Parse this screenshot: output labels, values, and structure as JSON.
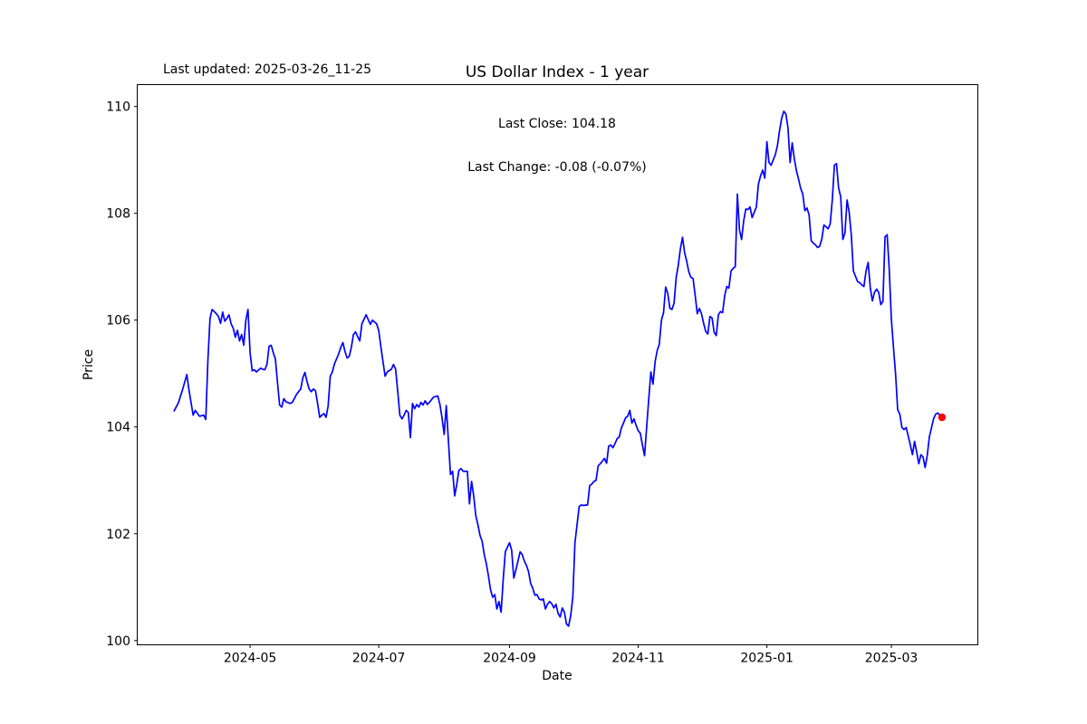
{
  "figure": {
    "last_updated": "Last updated: 2025-03-26_11-25",
    "background": "#ffffff"
  },
  "chart_data": {
    "type": "line",
    "title": "US Dollar Index - 1 year",
    "subtitle_lines": [
      "Last Close: 104.18",
      "Last Change: -0.08 (-0.07%)"
    ],
    "xlabel": "Date",
    "ylabel": "Price",
    "last_close": 104.18,
    "last_change_abs": -0.08,
    "last_change_pct": "-0.07%",
    "line_color": "#0000ff",
    "marker_color": "#ff0000",
    "axis_color": "#000000",
    "grid": false,
    "legend": "none",
    "ylim": [
      99.92,
      110.41
    ],
    "y_ticks": [
      100,
      102,
      104,
      106,
      108,
      110
    ],
    "xlim": [
      "2024-03-08T12:00:00Z",
      "2025-04-11T00:00:00Z"
    ],
    "x_ticks": [
      {
        "date": "2024-05-01",
        "label": "2024-05"
      },
      {
        "date": "2024-07-01",
        "label": "2024-07"
      },
      {
        "date": "2024-09-01",
        "label": "2024-09"
      },
      {
        "date": "2024-11-01",
        "label": "2024-11"
      },
      {
        "date": "2025-01-01",
        "label": "2025-01"
      },
      {
        "date": "2025-03-01",
        "label": "2025-03"
      }
    ],
    "series": [
      {
        "name": "US Dollar Index",
        "dates": [
          "2024-03-26",
          "2024-03-28",
          "2024-03-30",
          "2024-04-01",
          "2024-04-02",
          "2024-04-04",
          "2024-04-05",
          "2024-04-07",
          "2024-04-09",
          "2024-04-10",
          "2024-04-11",
          "2024-04-12",
          "2024-04-13",
          "2024-04-15",
          "2024-04-16",
          "2024-04-17",
          "2024-04-18",
          "2024-04-19",
          "2024-04-20",
          "2024-04-21",
          "2024-04-22",
          "2024-04-23",
          "2024-04-24",
          "2024-04-25",
          "2024-04-26",
          "2024-04-27",
          "2024-04-28",
          "2024-04-29",
          "2024-04-30",
          "2024-05-01",
          "2024-05-02",
          "2024-05-03",
          "2024-05-04",
          "2024-05-06",
          "2024-05-07",
          "2024-05-08",
          "2024-05-09",
          "2024-05-10",
          "2024-05-11",
          "2024-05-12",
          "2024-05-13",
          "2024-05-14",
          "2024-05-15",
          "2024-05-16",
          "2024-05-17",
          "2024-05-18",
          "2024-05-20",
          "2024-05-21",
          "2024-05-22",
          "2024-05-23",
          "2024-05-24",
          "2024-05-25",
          "2024-05-26",
          "2024-05-27",
          "2024-05-28",
          "2024-05-29",
          "2024-05-30",
          "2024-05-31",
          "2024-06-01",
          "2024-06-02",
          "2024-06-03",
          "2024-06-04",
          "2024-06-05",
          "2024-06-06",
          "2024-06-07",
          "2024-06-08",
          "2024-06-09",
          "2024-06-10",
          "2024-06-12",
          "2024-06-13",
          "2024-06-14",
          "2024-06-15",
          "2024-06-16",
          "2024-06-17",
          "2024-06-18",
          "2024-06-19",
          "2024-06-20",
          "2024-06-21",
          "2024-06-22",
          "2024-06-23",
          "2024-06-25",
          "2024-06-27",
          "2024-06-28",
          "2024-06-30",
          "2024-07-01",
          "2024-07-02",
          "2024-07-04",
          "2024-07-05",
          "2024-07-07",
          "2024-07-08",
          "2024-07-09",
          "2024-07-10",
          "2024-07-11",
          "2024-07-12",
          "2024-07-13",
          "2024-07-14",
          "2024-07-15",
          "2024-07-16",
          "2024-07-17",
          "2024-07-18",
          "2024-07-19",
          "2024-07-20",
          "2024-07-21",
          "2024-07-22",
          "2024-07-23",
          "2024-07-24",
          "2024-07-25",
          "2024-07-26",
          "2024-07-27",
          "2024-07-29",
          "2024-07-30",
          "2024-07-31",
          "2024-08-01",
          "2024-08-02",
          "2024-08-03",
          "2024-08-04",
          "2024-08-05",
          "2024-08-06",
          "2024-08-07",
          "2024-08-08",
          "2024-08-09",
          "2024-08-10",
          "2024-08-12",
          "2024-08-13",
          "2024-08-14",
          "2024-08-15",
          "2024-08-16",
          "2024-08-17",
          "2024-08-18",
          "2024-08-19",
          "2024-08-20",
          "2024-08-21",
          "2024-08-22",
          "2024-08-23",
          "2024-08-24",
          "2024-08-25",
          "2024-08-26",
          "2024-08-27",
          "2024-08-28",
          "2024-08-29",
          "2024-08-30",
          "2024-08-31",
          "2024-09-01",
          "2024-09-02",
          "2024-09-03",
          "2024-09-04",
          "2024-09-05",
          "2024-09-06",
          "2024-09-07",
          "2024-09-08",
          "2024-09-09",
          "2024-09-10",
          "2024-09-11",
          "2024-09-12",
          "2024-09-13",
          "2024-09-14",
          "2024-09-15",
          "2024-09-16",
          "2024-09-17",
          "2024-09-18",
          "2024-09-19",
          "2024-09-20",
          "2024-09-21",
          "2024-09-22",
          "2024-09-23",
          "2024-09-24",
          "2024-09-25",
          "2024-09-26",
          "2024-09-27",
          "2024-09-28",
          "2024-09-29",
          "2024-09-30",
          "2024-10-01",
          "2024-10-02",
          "2024-10-03",
          "2024-10-04",
          "2024-10-05",
          "2024-10-06",
          "2024-10-08",
          "2024-10-09",
          "2024-10-10",
          "2024-10-11",
          "2024-10-12",
          "2024-10-13",
          "2024-10-14",
          "2024-10-15",
          "2024-10-16",
          "2024-10-17",
          "2024-10-18",
          "2024-10-19",
          "2024-10-20",
          "2024-10-21",
          "2024-10-22",
          "2024-10-23",
          "2024-10-24",
          "2024-10-25",
          "2024-10-26",
          "2024-10-27",
          "2024-10-28",
          "2024-10-29",
          "2024-10-30",
          "2024-10-31",
          "2024-11-01",
          "2024-11-02",
          "2024-11-03",
          "2024-11-04",
          "2024-11-06",
          "2024-11-07",
          "2024-11-08",
          "2024-11-09",
          "2024-11-10",
          "2024-11-11",
          "2024-11-12",
          "2024-11-13",
          "2024-11-14",
          "2024-11-15",
          "2024-11-16",
          "2024-11-17",
          "2024-11-18",
          "2024-11-19",
          "2024-11-20",
          "2024-11-21",
          "2024-11-22",
          "2024-11-23",
          "2024-11-24",
          "2024-11-25",
          "2024-11-26",
          "2024-11-27",
          "2024-11-28",
          "2024-11-29",
          "2024-11-30",
          "2024-12-01",
          "2024-12-02",
          "2024-12-03",
          "2024-12-04",
          "2024-12-05",
          "2024-12-06",
          "2024-12-07",
          "2024-12-08",
          "2024-12-09",
          "2024-12-10",
          "2024-12-11",
          "2024-12-12",
          "2024-12-13",
          "2024-12-14",
          "2024-12-15",
          "2024-12-16",
          "2024-12-17",
          "2024-12-18",
          "2024-12-19",
          "2024-12-20",
          "2024-12-21",
          "2024-12-22",
          "2024-12-23",
          "2024-12-24",
          "2024-12-25",
          "2024-12-26",
          "2024-12-27",
          "2024-12-28",
          "2024-12-29",
          "2024-12-30",
          "2024-12-31",
          "2025-01-01",
          "2025-01-02",
          "2025-01-03",
          "2025-01-04",
          "2025-01-05",
          "2025-01-06",
          "2025-01-07",
          "2025-01-08",
          "2025-01-09",
          "2025-01-10",
          "2025-01-11",
          "2025-01-12",
          "2025-01-13",
          "2025-01-14",
          "2025-01-15",
          "2025-01-16",
          "2025-01-17",
          "2025-01-18",
          "2025-01-19",
          "2025-01-20",
          "2025-01-21",
          "2025-01-22",
          "2025-01-23",
          "2025-01-24",
          "2025-01-25",
          "2025-01-26",
          "2025-01-27",
          "2025-01-28",
          "2025-01-29",
          "2025-01-30",
          "2025-01-31",
          "2025-02-01",
          "2025-02-02",
          "2025-02-03",
          "2025-02-04",
          "2025-02-05",
          "2025-02-06",
          "2025-02-07",
          "2025-02-08",
          "2025-02-09",
          "2025-02-10",
          "2025-02-11",
          "2025-02-13",
          "2025-02-14",
          "2025-02-15",
          "2025-02-16",
          "2025-02-17",
          "2025-02-18",
          "2025-02-19",
          "2025-02-20",
          "2025-02-21",
          "2025-02-22",
          "2025-02-23",
          "2025-02-24",
          "2025-02-25",
          "2025-02-26",
          "2025-02-27",
          "2025-02-28",
          "2025-03-01",
          "2025-03-02",
          "2025-03-03",
          "2025-03-04",
          "2025-03-05",
          "2025-03-06",
          "2025-03-07",
          "2025-03-08",
          "2025-03-09",
          "2025-03-10",
          "2025-03-11",
          "2025-03-12",
          "2025-03-13",
          "2025-03-14",
          "2025-03-15",
          "2025-03-16",
          "2025-03-17",
          "2025-03-18",
          "2025-03-19",
          "2025-03-20",
          "2025-03-21",
          "2025-03-22",
          "2025-03-23",
          "2025-03-25"
        ],
        "values": [
          104.3,
          104.45,
          104.7,
          104.98,
          104.7,
          104.22,
          104.31,
          104.2,
          104.22,
          104.14,
          105.25,
          106.03,
          106.2,
          106.12,
          106.07,
          105.94,
          106.15,
          105.98,
          106.03,
          106.1,
          105.93,
          105.85,
          105.68,
          105.81,
          105.61,
          105.73,
          105.53,
          106.0,
          106.2,
          105.39,
          105.05,
          105.07,
          105.03,
          105.1,
          105.08,
          105.07,
          105.17,
          105.51,
          105.53,
          105.39,
          105.27,
          104.83,
          104.41,
          104.37,
          104.53,
          104.47,
          104.44,
          104.46,
          104.53,
          104.61,
          104.66,
          104.71,
          104.92,
          105.02,
          104.85,
          104.71,
          104.66,
          104.71,
          104.68,
          104.44,
          104.18,
          104.22,
          104.25,
          104.18,
          104.39,
          104.95,
          105.03,
          105.18,
          105.37,
          105.49,
          105.58,
          105.41,
          105.29,
          105.32,
          105.49,
          105.73,
          105.78,
          105.69,
          105.61,
          105.93,
          106.1,
          105.92,
          106.0,
          105.93,
          105.8,
          105.5,
          104.95,
          105.03,
          105.08,
          105.17,
          105.08,
          104.66,
          104.22,
          104.15,
          104.22,
          104.31,
          104.27,
          103.8,
          104.44,
          104.34,
          104.42,
          104.37,
          104.46,
          104.41,
          104.49,
          104.42,
          104.46,
          104.51,
          104.56,
          104.58,
          104.42,
          104.17,
          103.86,
          104.4,
          103.75,
          103.11,
          103.17,
          102.71,
          102.93,
          103.19,
          103.22,
          103.17,
          103.17,
          102.56,
          102.98,
          102.71,
          102.34,
          102.17,
          101.97,
          101.86,
          101.61,
          101.44,
          101.21,
          100.95,
          100.81,
          100.86,
          100.59,
          100.73,
          100.53,
          101.15,
          101.66,
          101.75,
          101.83,
          101.69,
          101.17,
          101.32,
          101.49,
          101.66,
          101.61,
          101.49,
          101.41,
          101.29,
          101.07,
          100.98,
          100.85,
          100.86,
          100.78,
          100.76,
          100.78,
          100.59,
          100.68,
          100.73,
          100.69,
          100.61,
          100.68,
          100.51,
          100.44,
          100.61,
          100.53,
          100.31,
          100.27,
          100.47,
          100.81,
          101.83,
          102.17,
          102.51,
          102.54,
          102.53,
          102.54,
          102.9,
          102.93,
          102.98,
          103.0,
          103.27,
          103.31,
          103.36,
          103.41,
          103.32,
          103.64,
          103.66,
          103.61,
          103.69,
          103.78,
          103.81,
          103.98,
          104.07,
          104.17,
          104.2,
          104.31,
          104.07,
          104.15,
          104.03,
          103.93,
          103.88,
          103.66,
          103.46,
          104.53,
          105.03,
          104.8,
          105.22,
          105.43,
          105.55,
          106.0,
          106.14,
          106.62,
          106.5,
          106.22,
          106.2,
          106.32,
          106.8,
          107.03,
          107.34,
          107.55,
          107.26,
          107.1,
          106.9,
          106.8,
          106.78,
          106.46,
          106.12,
          106.22,
          106.12,
          105.94,
          105.79,
          105.74,
          106.07,
          106.04,
          105.77,
          105.71,
          106.1,
          106.16,
          106.14,
          106.46,
          106.63,
          106.6,
          106.92,
          106.97,
          107.0,
          108.36,
          107.69,
          107.51,
          107.86,
          108.08,
          108.07,
          108.12,
          107.92,
          108.02,
          108.12,
          108.55,
          108.7,
          108.81,
          108.66,
          109.34,
          108.95,
          108.9,
          109.0,
          109.1,
          109.27,
          109.55,
          109.78,
          109.91,
          109.86,
          109.6,
          108.95,
          109.32,
          109.02,
          108.8,
          108.64,
          108.47,
          108.36,
          108.05,
          108.1,
          107.97,
          107.49,
          107.44,
          107.41,
          107.36,
          107.38,
          107.51,
          107.78,
          107.75,
          107.71,
          107.8,
          108.25,
          108.9,
          108.93,
          108.47,
          108.31,
          107.51,
          107.63,
          108.25,
          108.02,
          107.6,
          106.92,
          106.72,
          106.7,
          106.66,
          106.63,
          106.92,
          107.08,
          106.61,
          106.36,
          106.52,
          106.58,
          106.52,
          106.29,
          106.35,
          107.56,
          107.6,
          106.95,
          106.02,
          105.49,
          104.99,
          104.32,
          104.24,
          103.99,
          103.95,
          103.99,
          103.83,
          103.66,
          103.48,
          103.73,
          103.53,
          103.31,
          103.48,
          103.44,
          103.24,
          103.46,
          103.81,
          103.98,
          104.15,
          104.24,
          104.26,
          104.18
        ]
      }
    ],
    "end_marker": {
      "date": "2025-03-25",
      "value": 104.18
    }
  },
  "layout_note": ""
}
